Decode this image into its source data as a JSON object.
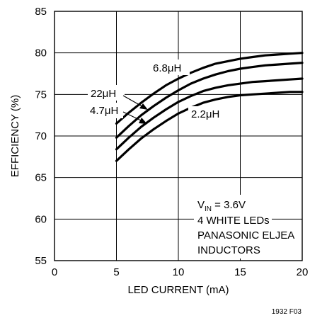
{
  "chart_data": {
    "type": "line",
    "xlabel": "LED CURRENT (mA)",
    "ylabel": "EFFICIENCY (%)",
    "xlim": [
      0,
      20
    ],
    "ylim": [
      55,
      85
    ],
    "xticks": [
      0,
      5,
      10,
      15,
      20
    ],
    "yticks": [
      55,
      60,
      65,
      70,
      75,
      80,
      85
    ],
    "grid": true,
    "series": [
      {
        "name": "6.8μH",
        "x": [
          5,
          6,
          7,
          8,
          9,
          10,
          11,
          12,
          13,
          14,
          15,
          16,
          17,
          18,
          19,
          20
        ],
        "y": [
          71.5,
          72.8,
          74.0,
          75.1,
          76.1,
          76.9,
          77.6,
          78.2,
          78.7,
          79.0,
          79.3,
          79.5,
          79.7,
          79.8,
          79.9,
          80.0
        ]
      },
      {
        "name": "22μH",
        "x": [
          5,
          6,
          7,
          8,
          9,
          10,
          11,
          12,
          13,
          14,
          15,
          16,
          17,
          18,
          19,
          20
        ],
        "y": [
          69.8,
          71.2,
          72.5,
          73.6,
          74.6,
          75.5,
          76.3,
          76.9,
          77.4,
          77.8,
          78.1,
          78.3,
          78.5,
          78.6,
          78.7,
          78.8
        ]
      },
      {
        "name": "4.7μH",
        "x": [
          5,
          6,
          7,
          8,
          9,
          10,
          11,
          12,
          13,
          14,
          15,
          16,
          17,
          18,
          19,
          20
        ],
        "y": [
          68.4,
          69.8,
          71.1,
          72.2,
          73.2,
          74.1,
          74.8,
          75.4,
          75.8,
          76.1,
          76.3,
          76.5,
          76.6,
          76.7,
          76.8,
          76.9
        ]
      },
      {
        "name": "2.2μH",
        "x": [
          5,
          6,
          7,
          8,
          9,
          10,
          11,
          12,
          13,
          14,
          15,
          16,
          17,
          18,
          19,
          20
        ],
        "y": [
          67.0,
          68.4,
          69.7,
          70.8,
          71.8,
          72.7,
          73.4,
          74.0,
          74.4,
          74.7,
          74.9,
          75.0,
          75.1,
          75.2,
          75.3,
          75.3
        ]
      }
    ],
    "annotations": {
      "vin_prefix": "V",
      "vin_sub": "IN",
      "vin_value": " = 3.6V",
      "line2": "4 WHITE LEDs",
      "line3": "PANASONIC ELJEA",
      "line4": "INDUCTORS"
    },
    "figure_id": "1932 F03"
  }
}
